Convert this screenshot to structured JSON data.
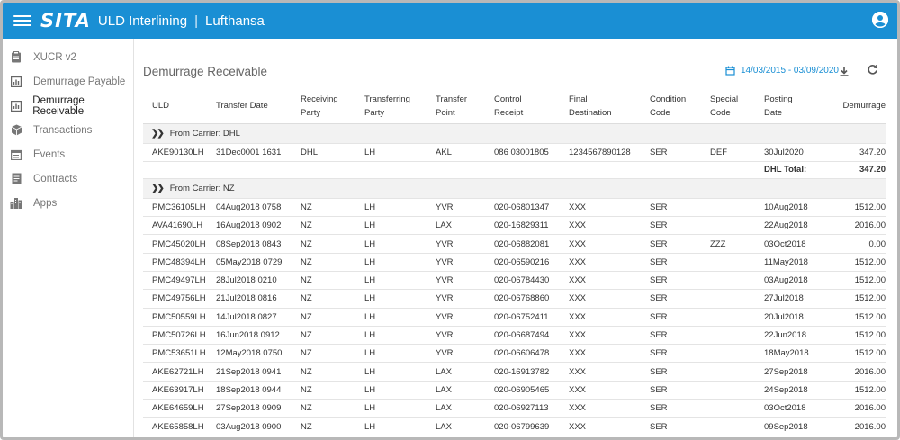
{
  "header": {
    "logo": "SITA",
    "app_title": "ULD Interlining",
    "separator": "|",
    "tenant": "Lufthansa"
  },
  "sidebar": {
    "items": [
      {
        "label": "XUCR v2",
        "icon": "clipboard-icon"
      },
      {
        "label": "Demurrage Payable",
        "icon": "chart-icon"
      },
      {
        "label": "Demurrage Receivable",
        "icon": "chart-icon",
        "active": true
      },
      {
        "label": "Transactions",
        "icon": "box-icon"
      },
      {
        "label": "Events",
        "icon": "calendar-list-icon"
      },
      {
        "label": "Contracts",
        "icon": "document-icon"
      },
      {
        "label": "Apps",
        "icon": "buildings-icon"
      }
    ]
  },
  "page": {
    "title": "Demurrage Receivable",
    "date_range": "14/03/2015 - 03/09/2020"
  },
  "colors": {
    "accent": "#1a8fd4",
    "group_bg": "#f2f2f2"
  },
  "table": {
    "headers": [
      [
        "ULD",
        ""
      ],
      [
        "Transfer Date",
        ""
      ],
      [
        "Receiving",
        "Party"
      ],
      [
        "Transferring",
        "Party"
      ],
      [
        "Transfer",
        "Point"
      ],
      [
        "Control",
        "Receipt"
      ],
      [
        "Final",
        "Destination"
      ],
      [
        "Condition",
        "Code"
      ],
      [
        "Special",
        "Code"
      ],
      [
        "Posting",
        "Date"
      ],
      [
        "Demurrage",
        ""
      ]
    ],
    "groups": [
      {
        "label": "From Carrier: DHL",
        "rows": [
          [
            "AKE90130LH",
            "31Dec0001 1631",
            "DHL",
            "LH",
            "AKL",
            "086 03001805",
            "1234567890128",
            "SER",
            "DEF",
            "30Jul2020",
            "347.20"
          ]
        ],
        "total_label": "DHL Total:",
        "total_value": "347.20"
      },
      {
        "label": "From Carrier: NZ",
        "rows": [
          [
            "PMC36105LH",
            "04Aug2018 0758",
            "NZ",
            "LH",
            "YVR",
            "020-06801347",
            "XXX",
            "SER",
            "",
            "10Aug2018",
            "1512.00"
          ],
          [
            "AVA41690LH",
            "16Aug2018 0902",
            "NZ",
            "LH",
            "LAX",
            "020-16829311",
            "XXX",
            "SER",
            "",
            "22Aug2018",
            "2016.00"
          ],
          [
            "PMC45020LH",
            "08Sep2018 0843",
            "NZ",
            "LH",
            "YVR",
            "020-06882081",
            "XXX",
            "SER",
            "ZZZ",
            "03Oct2018",
            "0.00"
          ],
          [
            "PMC48394LH",
            "05May2018 0729",
            "NZ",
            "LH",
            "YVR",
            "020-06590216",
            "XXX",
            "SER",
            "",
            "11May2018",
            "1512.00"
          ],
          [
            "PMC49497LH",
            "28Jul2018 0210",
            "NZ",
            "LH",
            "YVR",
            "020-06784430",
            "XXX",
            "SER",
            "",
            "03Aug2018",
            "1512.00"
          ],
          [
            "PMC49756LH",
            "21Jul2018 0816",
            "NZ",
            "LH",
            "YVR",
            "020-06768860",
            "XXX",
            "SER",
            "",
            "27Jul2018",
            "1512.00"
          ],
          [
            "PMC50559LH",
            "14Jul2018 0827",
            "NZ",
            "LH",
            "YVR",
            "020-06752411",
            "XXX",
            "SER",
            "",
            "20Jul2018",
            "1512.00"
          ],
          [
            "PMC50726LH",
            "16Jun2018 0912",
            "NZ",
            "LH",
            "YVR",
            "020-06687494",
            "XXX",
            "SER",
            "",
            "22Jun2018",
            "1512.00"
          ],
          [
            "PMC53651LH",
            "12May2018 0750",
            "NZ",
            "LH",
            "YVR",
            "020-06606478",
            "XXX",
            "SER",
            "",
            "18May2018",
            "1512.00"
          ],
          [
            "AKE62721LH",
            "21Sep2018 0941",
            "NZ",
            "LH",
            "LAX",
            "020-16913782",
            "XXX",
            "SER",
            "",
            "27Sep2018",
            "2016.00"
          ],
          [
            "AKE63917LH",
            "18Sep2018 0944",
            "NZ",
            "LH",
            "LAX",
            "020-06905465",
            "XXX",
            "SER",
            "",
            "24Sep2018",
            "1512.00"
          ],
          [
            "AKE64659LH",
            "27Sep2018 0909",
            "NZ",
            "LH",
            "LAX",
            "020-06927113",
            "XXX",
            "SER",
            "",
            "03Oct2018",
            "2016.00"
          ],
          [
            "AKE65858LH",
            "03Aug2018 0900",
            "NZ",
            "LH",
            "LAX",
            "020-06799639",
            "XXX",
            "SER",
            "",
            "09Sep2018",
            "2016.00"
          ]
        ]
      }
    ]
  }
}
